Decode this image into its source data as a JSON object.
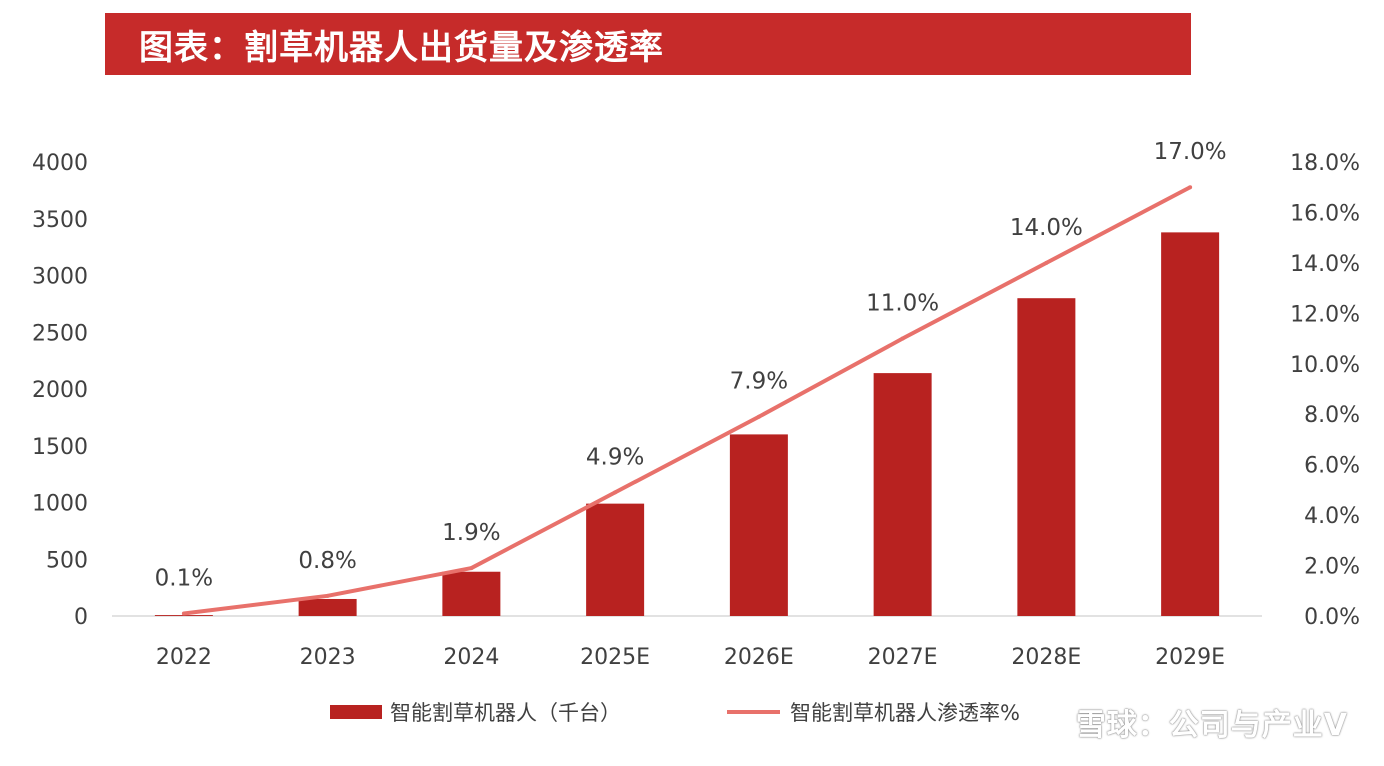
{
  "title": "图表：割草机器人出货量及渗透率",
  "watermark": "雪球：公司与产业V",
  "colors": {
    "bar": "#b82220",
    "line": "#e8716b",
    "title_bg": "#c62b2a"
  },
  "chart_data": {
    "type": "bar+line",
    "categories": [
      "2022",
      "2023",
      "2024",
      "2025E",
      "2026E",
      "2027E",
      "2028E",
      "2029E"
    ],
    "series": [
      {
        "name": "智能割草机器人（千台）",
        "type": "bar",
        "axis": "left",
        "values": [
          8,
          150,
          390,
          990,
          1600,
          2140,
          2800,
          3380
        ]
      },
      {
        "name": "智能割草机器人渗透率%",
        "type": "line",
        "axis": "right",
        "values": [
          0.1,
          0.8,
          1.9,
          4.9,
          7.9,
          11.0,
          14.0,
          17.0
        ],
        "labels": [
          "0.1%",
          "0.8%",
          "1.9%",
          "4.9%",
          "7.9%",
          "11.0%",
          "14.0%",
          "17.0%"
        ]
      }
    ],
    "y_left": {
      "min": 0,
      "max": 4000,
      "step": 500,
      "ticks": [
        "0",
        "500",
        "1000",
        "1500",
        "2000",
        "2500",
        "3000",
        "3500",
        "4000"
      ]
    },
    "y_right": {
      "min": 0,
      "max": 18,
      "step": 2,
      "ticks": [
        "0.0%",
        "2.0%",
        "4.0%",
        "6.0%",
        "8.0%",
        "10.0%",
        "12.0%",
        "14.0%",
        "16.0%",
        "18.0%"
      ]
    },
    "legend": {
      "position": "bottom"
    }
  }
}
